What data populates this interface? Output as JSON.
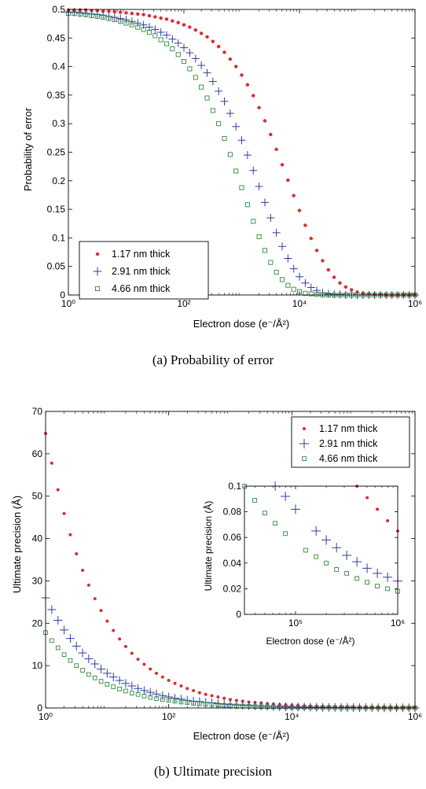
{
  "captions": {
    "a": "(a) Probability of error",
    "b": "(b) Ultimate precision"
  },
  "colors": {
    "series_1": "#e8262b",
    "series_2": "#2e3f9e",
    "series_3": "#2f8a3a"
  },
  "chart_data": [
    {
      "type": "scatter",
      "xlabel": "Electron dose (e⁻/Å²)",
      "ylabel": "Probability of error",
      "xscale": "log",
      "xlim": [
        1,
        1000000
      ],
      "ylim": [
        0,
        0.5
      ],
      "xticks": [
        "10⁰",
        "10²",
        "10⁴",
        "10⁶"
      ],
      "yticks": [
        "0",
        "0.05",
        "0.1",
        "0.15",
        "0.2",
        "0.25",
        "0.3",
        "0.35",
        "0.4",
        "0.45",
        "0.5"
      ],
      "grid": false,
      "legend": "bottom-left",
      "series": [
        {
          "name": "1.17 nm thick",
          "marker": "dot",
          "x": [
            1,
            1.26,
            1.59,
            2,
            2.52,
            3.17,
            3.99,
            5.02,
            6.32,
            7.96,
            10,
            12.6,
            15.9,
            20,
            25.2,
            31.7,
            39.9,
            50.2,
            63.2,
            79.6,
            100,
            126,
            159,
            200,
            252,
            317,
            399,
            502,
            632,
            796,
            1000,
            1260,
            1590,
            2000,
            2520,
            3170,
            3990,
            5020,
            6320,
            7960,
            10000,
            12600,
            15900,
            20000,
            25200,
            31700,
            39900,
            50200,
            63200,
            79600,
            100000,
            126000,
            159000,
            200000,
            252000,
            317000,
            399000,
            502000,
            632000,
            796000,
            1000000
          ],
          "y": [
            0.499,
            0.499,
            0.499,
            0.499,
            0.498,
            0.498,
            0.497,
            0.497,
            0.496,
            0.495,
            0.494,
            0.493,
            0.492,
            0.491,
            0.489,
            0.487,
            0.485,
            0.483,
            0.48,
            0.477,
            0.473,
            0.469,
            0.464,
            0.458,
            0.452,
            0.444,
            0.435,
            0.425,
            0.413,
            0.4,
            0.385,
            0.368,
            0.349,
            0.328,
            0.305,
            0.281,
            0.255,
            0.228,
            0.201,
            0.174,
            0.148,
            0.122,
            0.099,
            0.078,
            0.06,
            0.044,
            0.031,
            0.021,
            0.014,
            0.009,
            0.005,
            0.003,
            0.002,
            0.001,
            0.001,
            0,
            0,
            0,
            0,
            0,
            0
          ]
        },
        {
          "name": "2.91 nm thick",
          "marker": "plus",
          "x": [
            1,
            1.26,
            1.59,
            2,
            2.52,
            3.17,
            3.99,
            5.02,
            6.32,
            7.96,
            10,
            12.6,
            15.9,
            20,
            25.2,
            31.7,
            39.9,
            50.2,
            63.2,
            79.6,
            100,
            126,
            159,
            200,
            252,
            317,
            399,
            502,
            632,
            796,
            1000,
            1260,
            1590,
            2000,
            2520,
            3170,
            3990,
            5020,
            6320,
            7960,
            10000,
            12600,
            15900,
            20000,
            25200,
            31700,
            39900,
            50200,
            63200,
            79600,
            100000,
            126000,
            159000,
            200000,
            252000,
            317000,
            399000,
            502000,
            632000,
            796000,
            1000000
          ],
          "y": [
            0.495,
            0.495,
            0.494,
            0.493,
            0.492,
            0.491,
            0.49,
            0.488,
            0.486,
            0.484,
            0.482,
            0.479,
            0.476,
            0.473,
            0.469,
            0.465,
            0.46,
            0.455,
            0.448,
            0.441,
            0.433,
            0.424,
            0.414,
            0.402,
            0.389,
            0.374,
            0.357,
            0.339,
            0.318,
            0.295,
            0.271,
            0.245,
            0.218,
            0.19,
            0.162,
            0.135,
            0.109,
            0.085,
            0.064,
            0.046,
            0.032,
            0.021,
            0.013,
            0.008,
            0.004,
            0.002,
            0.001,
            0.001,
            0,
            0,
            0,
            0,
            0,
            0,
            0,
            0,
            0,
            0,
            0,
            0,
            0
          ]
        },
        {
          "name": "4.66 nm thick",
          "marker": "square",
          "x": [
            1,
            1.26,
            1.59,
            2,
            2.52,
            3.17,
            3.99,
            5.02,
            6.32,
            7.96,
            10,
            12.6,
            15.9,
            20,
            25.2,
            31.7,
            39.9,
            50.2,
            63.2,
            79.6,
            100,
            126,
            159,
            200,
            252,
            317,
            399,
            502,
            632,
            796,
            1000,
            1260,
            1590,
            2000,
            2520,
            3170,
            3990,
            5020,
            6320,
            7960,
            10000,
            12600,
            15900,
            20000,
            25200,
            31700,
            39900,
            50200,
            63200,
            79600,
            100000,
            126000,
            159000,
            200000,
            252000,
            317000,
            399000,
            502000,
            632000,
            796000,
            1000000
          ],
          "y": [
            0.493,
            0.493,
            0.492,
            0.491,
            0.489,
            0.488,
            0.486,
            0.484,
            0.482,
            0.479,
            0.476,
            0.473,
            0.469,
            0.465,
            0.46,
            0.454,
            0.447,
            0.44,
            0.431,
            0.421,
            0.409,
            0.396,
            0.381,
            0.364,
            0.345,
            0.323,
            0.3,
            0.274,
            0.246,
            0.217,
            0.188,
            0.158,
            0.129,
            0.102,
            0.078,
            0.057,
            0.04,
            0.027,
            0.017,
            0.01,
            0.006,
            0.003,
            0.002,
            0.001,
            0,
            0,
            0,
            0,
            0,
            0,
            0,
            0,
            0,
            0,
            0,
            0,
            0,
            0,
            0,
            0,
            0
          ]
        }
      ]
    },
    {
      "type": "scatter",
      "xlabel": "Electron dose (e⁻/Å²)",
      "ylabel": "Ultimate precision (Å)",
      "xscale": "log",
      "xlim": [
        1,
        1000000
      ],
      "ylim": [
        0,
        70
      ],
      "xticks": [
        "10⁰",
        "10²",
        "10⁴",
        "10⁶"
      ],
      "yticks": [
        "0",
        "10",
        "20",
        "30",
        "40",
        "50",
        "60",
        "70"
      ],
      "grid": false,
      "legend": "top-right",
      "series": [
        {
          "name": "1.17 nm thick",
          "marker": "dot",
          "x": [
            1,
            1.26,
            1.59,
            2,
            2.52,
            3.17,
            3.99,
            5.02,
            6.32,
            7.96,
            10,
            12.6,
            15.9,
            20,
            25.2,
            31.7,
            39.9,
            50.2,
            63.2,
            79.6,
            100,
            126,
            159,
            200,
            252,
            317,
            399,
            502,
            632,
            796,
            1000,
            1260,
            1590,
            2000,
            2520,
            3170,
            3990,
            5020,
            6320,
            7960,
            10000,
            12600,
            15900,
            20000,
            25200,
            31700,
            39900,
            50200,
            63200,
            79600,
            100000,
            126000,
            159000,
            200000,
            252000,
            317000,
            399000,
            502000,
            632000,
            796000,
            1000000
          ],
          "y": [
            64.8,
            57.8,
            51.5,
            45.9,
            40.9,
            36.4,
            32.5,
            29,
            25.8,
            23,
            20.5,
            18.3,
            16.3,
            14.5,
            12.9,
            11.5,
            10.3,
            9.2,
            8.2,
            7.3,
            6.5,
            5.8,
            5.2,
            4.6,
            4.1,
            3.6,
            3.2,
            2.9,
            2.6,
            2.3,
            2,
            1.8,
            1.6,
            1.4,
            1.3,
            1.2,
            1,
            0.9,
            0.8,
            0.7,
            0.65,
            0.6,
            0.5,
            0.45,
            0.4,
            0.36,
            0.32,
            0.29,
            0.26,
            0.23,
            0.21,
            0.18,
            0.16,
            0.15,
            0.13,
            0.115,
            0.1,
            0.091,
            0.082,
            0.073,
            0.065
          ]
        },
        {
          "name": "2.91 nm thick",
          "marker": "plus",
          "x": [
            1,
            1.26,
            1.59,
            2,
            2.52,
            3.17,
            3.99,
            5.02,
            6.32,
            7.96,
            10,
            12.6,
            15.9,
            20,
            25.2,
            31.7,
            39.9,
            50.2,
            63.2,
            79.6,
            100,
            126,
            159,
            200,
            252,
            317,
            399,
            502,
            632,
            796,
            1000,
            1260,
            1590,
            2000,
            2520,
            3170,
            3990,
            5020,
            6320,
            7960,
            10000,
            12600,
            15900,
            20000,
            25200,
            31700,
            39900,
            50200,
            63200,
            79600,
            100000,
            126000,
            159000,
            200000,
            252000,
            317000,
            399000,
            502000,
            632000,
            796000,
            1000000
          ],
          "y": [
            26,
            23.2,
            20.7,
            18.4,
            16.4,
            14.6,
            13,
            11.6,
            10.4,
            9.2,
            8.2,
            7.3,
            6.5,
            5.8,
            5.2,
            4.6,
            4.1,
            3.7,
            3.3,
            2.9,
            2.6,
            2.3,
            2.1,
            1.8,
            1.6,
            1.5,
            1.3,
            1.2,
            1,
            0.9,
            0.8,
            0.73,
            0.65,
            0.58,
            0.52,
            0.46,
            0.41,
            0.37,
            0.33,
            0.29,
            0.26,
            0.23,
            0.21,
            0.18,
            0.16,
            0.15,
            0.13,
            0.12,
            0.1,
            0.092,
            0.082,
            0.073,
            0.065,
            0.058,
            0.052,
            0.046,
            0.041,
            0.036,
            0.032,
            0.029,
            0.026
          ]
        },
        {
          "name": "4.66 nm thick",
          "marker": "square",
          "x": [
            1,
            1.26,
            1.59,
            2,
            2.52,
            3.17,
            3.99,
            5.02,
            6.32,
            7.96,
            10,
            12.6,
            15.9,
            20,
            25.2,
            31.7,
            39.9,
            50.2,
            63.2,
            79.6,
            100,
            126,
            159,
            200,
            252,
            317,
            399,
            502,
            632,
            796,
            1000,
            1260,
            1590,
            2000,
            2520,
            3170,
            3990,
            5020,
            6320,
            7960,
            10000,
            12600,
            15900,
            20000,
            25200,
            31700,
            39900,
            50200,
            63200,
            79600,
            100000,
            126000,
            159000,
            200000,
            252000,
            317000,
            399000,
            502000,
            632000,
            796000,
            1000000
          ],
          "y": [
            17.8,
            15.9,
            14.2,
            12.6,
            11.2,
            10,
            8.9,
            7.9,
            7.1,
            6.3,
            5.6,
            5,
            4.5,
            4,
            3.5,
            3.2,
            2.8,
            2.5,
            2.2,
            2,
            1.8,
            1.6,
            1.4,
            1.3,
            1.1,
            1,
            0.89,
            0.79,
            0.71,
            0.63,
            0.56,
            0.5,
            0.45,
            0.4,
            0.35,
            0.32,
            0.28,
            0.25,
            0.22,
            0.2,
            0.18,
            0.16,
            0.14,
            0.125,
            0.11,
            0.1,
            0.089,
            0.079,
            0.071,
            0.063,
            0.056,
            0.05,
            0.045,
            0.04,
            0.035,
            0.032,
            0.028,
            0.025,
            0.022,
            0.02,
            0.018
          ]
        }
      ],
      "inset": {
        "type": "scatter",
        "xlabel": "Electron dose (e⁻/Å²)",
        "ylabel": "Ultimate precision (Å)",
        "xscale": "log",
        "xlim": [
          31623,
          1000000
        ],
        "ylim": [
          0,
          0.1
        ],
        "xticks": [
          "10⁵",
          "10⁶"
        ],
        "yticks": [
          "0",
          "0.02",
          "0.04",
          "0.06",
          "0.08",
          "0.1"
        ]
      }
    }
  ]
}
